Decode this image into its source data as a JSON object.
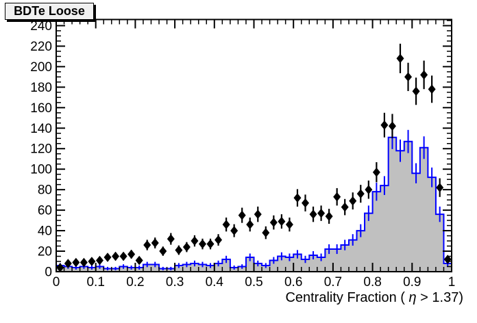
{
  "title_box": {
    "label": "BDTe Loose"
  },
  "colors": {
    "background": "#ffffff",
    "frame_border": "#000000",
    "histogram_fill": "#c0c0c0",
    "histogram_line": "#0000ff",
    "marker_color": "#000000",
    "title_box_fill": "#f0f0f0",
    "title_box_border": "#000000",
    "text_color": "#000000"
  },
  "chart_data": {
    "type": "bar",
    "title": "BDTe Loose",
    "xlabel": "Centrality Fraction ( η > 1.37)",
    "ylabel": "",
    "xlim": [
      0,
      1
    ],
    "ylim": [
      0,
      246
    ],
    "grid": false,
    "legend": null,
    "x_major_ticks": [
      0,
      0.1,
      0.2,
      0.3,
      0.4,
      0.5,
      0.6,
      0.7,
      0.8,
      0.9,
      1
    ],
    "x_tick_labels": [
      "0",
      "0.1",
      "0.2",
      "0.3",
      "0.4",
      "0.5",
      "0.6",
      "0.7",
      "0.8",
      "0.9",
      "1"
    ],
    "x_minor_step": 0.02,
    "y_major_ticks": [
      0,
      20,
      40,
      60,
      80,
      100,
      120,
      140,
      160,
      180,
      200,
      220,
      240
    ],
    "y_tick_labels": [
      "0",
      "20",
      "40",
      "60",
      "80",
      "100",
      "120",
      "140",
      "160",
      "180",
      "200",
      "220",
      "240"
    ],
    "y_minor_step": 5,
    "series": [
      {
        "name": "filled-histogram",
        "type": "histogram",
        "fill": "#c0c0c0",
        "line_color": "#0000ff",
        "bin_start": 0.0,
        "bin_width": 0.02,
        "values": [
          6,
          5,
          4,
          5,
          4,
          5,
          3,
          3,
          5,
          4,
          4,
          7,
          7,
          3,
          3,
          6,
          7,
          8,
          7,
          6,
          8,
          12,
          4,
          5,
          14,
          8,
          6,
          11,
          15,
          14,
          17,
          12,
          16,
          14,
          22,
          22,
          26,
          31,
          40,
          57,
          78,
          84,
          131,
          118,
          127,
          96,
          121,
          92,
          56,
          8
        ],
        "yerr": [
          2.4,
          2.2,
          2.0,
          2.2,
          2.0,
          2.2,
          1.7,
          1.7,
          2.2,
          2.0,
          2.0,
          2.6,
          2.6,
          1.7,
          1.7,
          2.4,
          2.6,
          2.8,
          2.6,
          2.4,
          2.8,
          3.5,
          2.0,
          2.2,
          3.7,
          2.8,
          2.4,
          3.3,
          3.9,
          3.7,
          4.1,
          3.5,
          4.0,
          3.7,
          4.7,
          4.7,
          5.1,
          5.6,
          6.3,
          7.5,
          8.8,
          9.2,
          11.4,
          10.9,
          11.3,
          9.8,
          11.0,
          9.6,
          7.5,
          2.8
        ]
      },
      {
        "name": "data-points",
        "type": "scatter",
        "marker": "diamond",
        "color": "#000000",
        "x": [
          0.01,
          0.03,
          0.05,
          0.07,
          0.09,
          0.11,
          0.13,
          0.15,
          0.17,
          0.19,
          0.21,
          0.23,
          0.25,
          0.27,
          0.29,
          0.31,
          0.33,
          0.35,
          0.37,
          0.39,
          0.41,
          0.43,
          0.45,
          0.47,
          0.49,
          0.51,
          0.53,
          0.55,
          0.57,
          0.59,
          0.61,
          0.63,
          0.65,
          0.67,
          0.69,
          0.71,
          0.73,
          0.75,
          0.77,
          0.79,
          0.81,
          0.83,
          0.85,
          0.87,
          0.89,
          0.91,
          0.93,
          0.95,
          0.97,
          0.99
        ],
        "y": [
          4,
          8,
          9,
          9,
          10,
          11,
          14,
          15,
          15,
          17,
          11,
          26,
          28,
          20,
          32,
          21,
          24,
          30,
          27,
          27,
          31,
          46,
          40,
          55,
          46,
          56,
          38,
          48,
          49,
          46,
          72,
          67,
          56,
          57,
          54,
          73,
          63,
          69,
          76,
          80,
          97,
          143,
          142,
          208,
          190,
          176,
          192,
          178,
          82,
          12
        ],
        "yerr": [
          2.0,
          2.8,
          3.0,
          3.0,
          3.2,
          3.3,
          3.7,
          3.9,
          3.9,
          4.1,
          3.3,
          5.1,
          5.3,
          4.5,
          5.7,
          4.6,
          4.9,
          5.5,
          5.2,
          5.2,
          5.6,
          6.8,
          6.3,
          7.4,
          6.8,
          7.5,
          6.2,
          6.9,
          7.0,
          6.8,
          8.5,
          8.2,
          7.5,
          7.5,
          7.3,
          8.5,
          7.9,
          8.3,
          8.7,
          8.9,
          9.8,
          12.0,
          11.9,
          14.4,
          13.8,
          13.3,
          13.9,
          13.3,
          9.1,
          3.5
        ]
      }
    ]
  }
}
